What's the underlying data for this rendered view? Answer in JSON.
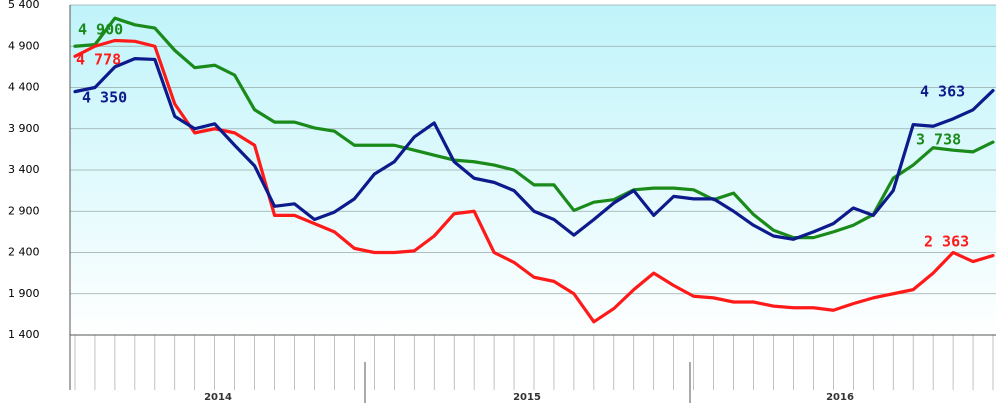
{
  "chart_data": {
    "type": "line",
    "categories": [
      null,
      null,
      null,
      null,
      null,
      null,
      null,
      null,
      null,
      null,
      null,
      null,
      null,
      null,
      null,
      null,
      null,
      null,
      null,
      null,
      null,
      null,
      null,
      null,
      null,
      null,
      null,
      null,
      null,
      null,
      null,
      null,
      null,
      null,
      null,
      null,
      null,
      null,
      null,
      null,
      null,
      null,
      null,
      null,
      null,
      null,
      null
    ],
    "series": [
      {
        "color": "#1a8a1a",
        "values": [
          4900,
          4920,
          5240,
          5160,
          5120,
          4850,
          4640,
          4670,
          4550,
          4130,
          3980,
          3980,
          3910,
          3870,
          3700,
          3700,
          3700,
          3640,
          3580,
          3520,
          3500,
          3460,
          3400,
          3220,
          3220,
          2910,
          3010,
          3040,
          3160,
          3180,
          3180,
          3160,
          3040,
          3120,
          2860,
          2670,
          2580,
          2580,
          2650,
          2730,
          2860,
          3300,
          3460,
          3670,
          3640,
          3620,
          3738
        ]
      },
      {
        "color": "#ff1a1a",
        "values": [
          4778,
          4900,
          4970,
          4960,
          4900,
          4200,
          3850,
          3900,
          3850,
          3700,
          2850,
          2850,
          2750,
          2650,
          2450,
          2400,
          2400,
          2420,
          2600,
          2870,
          2900,
          2400,
          2280,
          2100,
          2050,
          1900,
          1560,
          1720,
          1950,
          2150,
          2000,
          1870,
          1850,
          1800,
          1800,
          1750,
          1730,
          1730,
          1700,
          1780,
          1850,
          1900,
          1950,
          2150,
          2400,
          2290,
          2363
        ]
      },
      {
        "color": "#0d1a8c",
        "values": [
          4350,
          4400,
          4650,
          4750,
          4740,
          4050,
          3900,
          3960,
          3700,
          3450,
          2960,
          2990,
          2800,
          2890,
          3050,
          3350,
          3500,
          3800,
          3970,
          3500,
          3300,
          3250,
          3150,
          2900,
          2800,
          2610,
          2800,
          3000,
          3150,
          2850,
          3080,
          3050,
          3050,
          2900,
          2730,
          2600,
          2560,
          2650,
          2750,
          2940,
          2850,
          3150,
          3950,
          3930,
          4020,
          4130,
          4363
        ]
      }
    ],
    "annotations": [
      "4 900",
      "4 778",
      "4 350",
      "4 363",
      "3 738",
      "2 363"
    ],
    "x_groups": [
      "2014",
      "2015",
      "2016"
    ],
    "ylim": [
      1400,
      5400
    ],
    "yticks": [
      {
        "value": 1400,
        "label": "1 400"
      },
      {
        "value": 1900,
        "label": "1 900"
      },
      {
        "value": 2400,
        "label": "2 400"
      },
      {
        "value": 2900,
        "label": "2 900"
      },
      {
        "value": 3400,
        "label": "3 400"
      },
      {
        "value": 3900,
        "label": "3 900"
      },
      {
        "value": 4400,
        "label": "4 400"
      },
      {
        "value": 4900,
        "label": "4 900"
      },
      {
        "value": 5400,
        "label": "5 400"
      }
    ],
    "grid": true
  }
}
